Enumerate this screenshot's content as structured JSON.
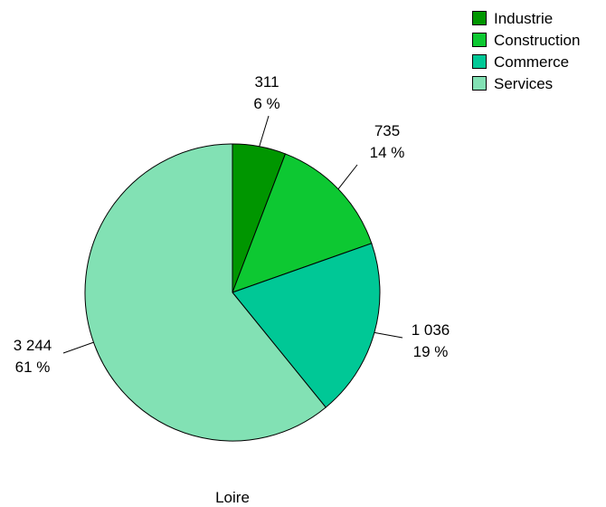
{
  "chart_data": {
    "type": "pie",
    "title": "Loire",
    "legend_position": "top-right",
    "slices": [
      {
        "name": "Industrie",
        "value": 311,
        "value_label": "311",
        "percent_label": "6 %",
        "color": "#009600"
      },
      {
        "name": "Construction",
        "value": 735,
        "value_label": "735",
        "percent_label": "14 %",
        "color": "#0dc832"
      },
      {
        "name": "Commerce",
        "value": 1036,
        "value_label": "1 036",
        "percent_label": "19 %",
        "color": "#00c896"
      },
      {
        "name": "Services",
        "value": 3244,
        "value_label": "3 244",
        "percent_label": "61 %",
        "color": "#82e1b4"
      }
    ]
  }
}
